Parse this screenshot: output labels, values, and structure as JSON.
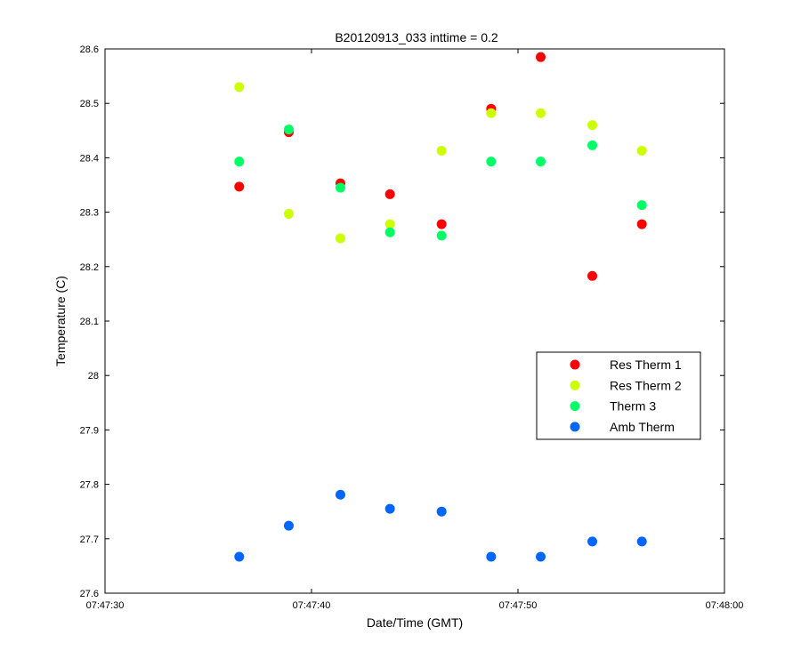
{
  "chart_data": {
    "type": "scatter",
    "title": "B20120913_033 inttime = 0.2",
    "xlabel": "Date/Time (GMT)",
    "ylabel": "Temperature (C)",
    "xlim": [
      "07:47:30",
      "07:48:00"
    ],
    "ylim": [
      27.6,
      28.6
    ],
    "xticks": [
      "07:47:30",
      "07:47:40",
      "07:47:50",
      "07:48:00"
    ],
    "yticks": [
      "27.6",
      "27.7",
      "27.8",
      "27.9",
      "28",
      "28.1",
      "28.2",
      "28.3",
      "28.4",
      "28.5",
      "28.6"
    ],
    "grid": false,
    "legend_position": "right",
    "x": [
      "07:47:36.5",
      "07:47:38.9",
      "07:47:41.4",
      "07:47:43.8",
      "07:47:46.3",
      "07:47:48.7",
      "07:47:51.1",
      "07:47:53.6",
      "07:47:56.0"
    ],
    "series": [
      {
        "name": "Res Therm 1",
        "color": "#ff0000",
        "values": [
          28.347,
          28.447,
          28.353,
          28.333,
          28.278,
          28.49,
          28.585,
          28.183,
          28.278
        ]
      },
      {
        "name": "Res Therm 2",
        "color": "#ccff00",
        "values": [
          28.53,
          28.297,
          28.252,
          28.278,
          28.413,
          28.482,
          28.482,
          28.46,
          28.413
        ]
      },
      {
        "name": "Therm 3",
        "color": "#00ff66",
        "values": [
          28.393,
          28.452,
          28.345,
          28.263,
          28.257,
          28.393,
          28.393,
          28.423,
          28.313
        ]
      },
      {
        "name": "Amb Therm",
        "color": "#0066ff",
        "values": [
          27.667,
          27.724,
          27.781,
          27.755,
          27.75,
          27.667,
          27.667,
          27.695,
          27.695
        ]
      }
    ]
  }
}
